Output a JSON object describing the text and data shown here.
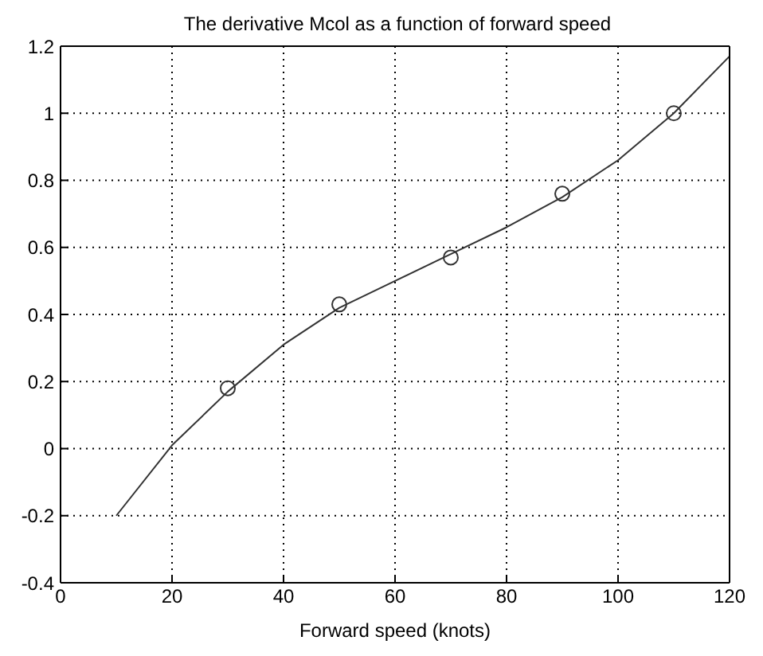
{
  "chart_data": {
    "type": "line",
    "title": "The derivative Mcol as a function of forward speed",
    "xlabel": "Forward speed (knots)",
    "xlim": [
      0,
      120
    ],
    "xticks": [
      0,
      20,
      40,
      60,
      80,
      100,
      120
    ],
    "ylim": [
      -0.4,
      1.2
    ],
    "yticks": [
      -0.4,
      -0.2,
      0,
      0.2,
      0.4,
      0.6,
      0.8,
      1,
      1.2
    ],
    "grid": true,
    "legend": false,
    "series": [
      {
        "color": "#333333",
        "marker": "none",
        "x": [
          10,
          20,
          30,
          40,
          50,
          60,
          70,
          80,
          90,
          100,
          110,
          120
        ],
        "values": [
          -0.2,
          0.01,
          0.17,
          0.31,
          0.42,
          0.5,
          0.58,
          0.66,
          0.75,
          0.86,
          1.0,
          1.17
        ]
      },
      {
        "type": "scatter",
        "color": "#333333",
        "marker": "circle",
        "x": [
          30,
          50,
          70,
          90,
          110
        ],
        "values": [
          0.18,
          0.43,
          0.57,
          0.76,
          1.0
        ]
      }
    ]
  }
}
